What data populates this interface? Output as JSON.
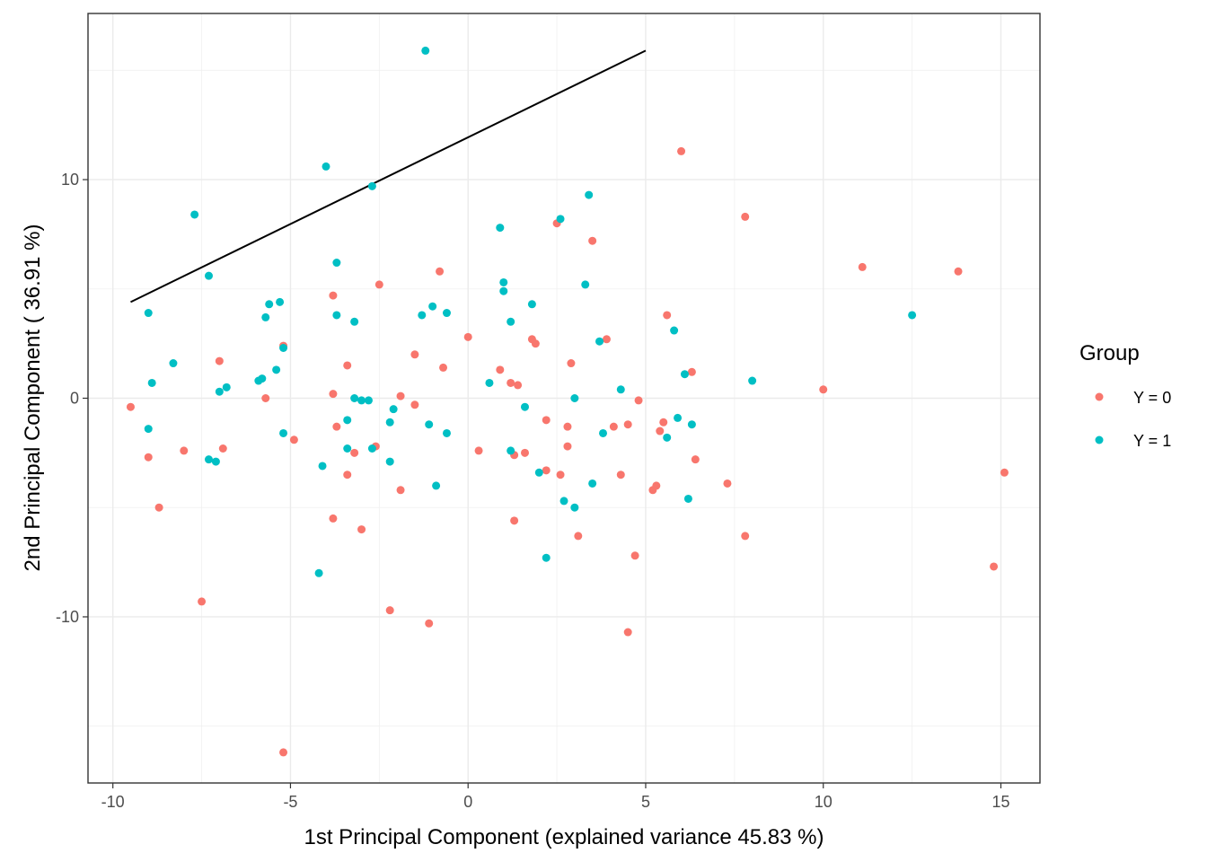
{
  "chart_data": {
    "type": "scatter",
    "xlabel": "1st Principal Component (explained variance 45.83 %)",
    "ylabel": "2nd Principal Component ( 36.91 %)",
    "xlim": [
      -10.7,
      16.1
    ],
    "ylim": [
      -17.6,
      17.6
    ],
    "x_ticks": [
      -10,
      -5,
      0,
      5,
      10,
      15
    ],
    "x_tick_labels": [
      "-10",
      "-5",
      "0",
      "5",
      "10",
      "15"
    ],
    "y_ticks": [
      -10,
      0,
      10
    ],
    "y_tick_labels": [
      "-10",
      "0",
      "10"
    ],
    "grid": true,
    "legend": {
      "title": "Group",
      "position": "right"
    },
    "series": [
      {
        "name": "Y = 0",
        "color": "#F8766D",
        "points": [
          [
            -9.5,
            -0.4
          ],
          [
            -9.0,
            -2.7
          ],
          [
            -8.7,
            -5.0
          ],
          [
            -8.0,
            -2.4
          ],
          [
            -7.5,
            -9.3
          ],
          [
            -7.0,
            1.7
          ],
          [
            -6.9,
            -2.3
          ],
          [
            -5.7,
            0.0
          ],
          [
            -5.2,
            2.4
          ],
          [
            -5.2,
            -16.2
          ],
          [
            -4.9,
            -1.9
          ],
          [
            -3.8,
            4.7
          ],
          [
            -3.8,
            0.2
          ],
          [
            -3.8,
            -5.5
          ],
          [
            -3.7,
            -1.3
          ],
          [
            -3.4,
            1.5
          ],
          [
            -3.4,
            -3.5
          ],
          [
            -3.2,
            -2.5
          ],
          [
            -3.0,
            -6.0
          ],
          [
            -2.6,
            -2.2
          ],
          [
            -2.5,
            5.2
          ],
          [
            -2.2,
            -9.7
          ],
          [
            -1.9,
            -4.2
          ],
          [
            -1.9,
            0.1
          ],
          [
            -1.5,
            2.0
          ],
          [
            -1.5,
            -0.3
          ],
          [
            -1.1,
            -10.3
          ],
          [
            -0.8,
            5.8
          ],
          [
            -0.7,
            1.4
          ],
          [
            0.0,
            2.8
          ],
          [
            0.3,
            -2.4
          ],
          [
            0.9,
            1.3
          ],
          [
            1.2,
            0.7
          ],
          [
            1.3,
            -2.6
          ],
          [
            1.3,
            -5.6
          ],
          [
            1.4,
            0.6
          ],
          [
            1.6,
            -2.5
          ],
          [
            1.8,
            2.7
          ],
          [
            1.9,
            2.5
          ],
          [
            2.2,
            -1.0
          ],
          [
            2.2,
            -3.3
          ],
          [
            2.5,
            8.0
          ],
          [
            2.6,
            -3.5
          ],
          [
            2.8,
            -1.3
          ],
          [
            2.8,
            -2.2
          ],
          [
            2.9,
            1.6
          ],
          [
            3.1,
            -6.3
          ],
          [
            3.5,
            7.2
          ],
          [
            3.9,
            2.7
          ],
          [
            4.1,
            -1.3
          ],
          [
            4.3,
            -3.5
          ],
          [
            4.5,
            -1.2
          ],
          [
            4.5,
            -10.7
          ],
          [
            4.7,
            -7.2
          ],
          [
            4.8,
            -0.1
          ],
          [
            5.2,
            -4.2
          ],
          [
            5.3,
            -4.0
          ],
          [
            5.4,
            -1.5
          ],
          [
            5.5,
            -1.1
          ],
          [
            5.6,
            3.8
          ],
          [
            6.0,
            11.3
          ],
          [
            6.3,
            1.2
          ],
          [
            6.4,
            -2.8
          ],
          [
            7.3,
            -3.9
          ],
          [
            7.8,
            -6.3
          ],
          [
            7.8,
            8.3
          ],
          [
            10.0,
            0.4
          ],
          [
            11.1,
            6.0
          ],
          [
            13.8,
            5.8
          ],
          [
            14.8,
            -7.7
          ],
          [
            15.1,
            -3.4
          ]
        ]
      },
      {
        "name": "Y = 1",
        "color": "#00BFC4",
        "points": [
          [
            -9.0,
            3.9
          ],
          [
            -9.0,
            -1.4
          ],
          [
            -8.9,
            0.7
          ],
          [
            -8.3,
            1.6
          ],
          [
            -7.7,
            8.4
          ],
          [
            -7.3,
            5.6
          ],
          [
            -7.3,
            -2.8
          ],
          [
            -7.1,
            -2.9
          ],
          [
            -7.0,
            0.3
          ],
          [
            -6.8,
            0.5
          ],
          [
            -5.9,
            0.8
          ],
          [
            -5.8,
            0.9
          ],
          [
            -5.7,
            3.7
          ],
          [
            -5.6,
            4.3
          ],
          [
            -5.4,
            1.3
          ],
          [
            -5.3,
            4.4
          ],
          [
            -5.2,
            2.3
          ],
          [
            -5.2,
            -1.6
          ],
          [
            -4.2,
            -8.0
          ],
          [
            -4.1,
            -3.1
          ],
          [
            -4.0,
            10.6
          ],
          [
            -3.7,
            6.2
          ],
          [
            -3.7,
            3.8
          ],
          [
            -3.4,
            -2.3
          ],
          [
            -3.4,
            -1.0
          ],
          [
            -3.2,
            0.0
          ],
          [
            -3.2,
            3.5
          ],
          [
            -3.0,
            -0.1
          ],
          [
            -2.8,
            -0.1
          ],
          [
            -2.7,
            9.7
          ],
          [
            -2.7,
            -2.3
          ],
          [
            -2.2,
            -1.1
          ],
          [
            -2.2,
            -2.9
          ],
          [
            -2.1,
            -0.5
          ],
          [
            -1.3,
            3.8
          ],
          [
            -1.2,
            15.9
          ],
          [
            -1.1,
            -1.2
          ],
          [
            -1.0,
            4.2
          ],
          [
            -0.9,
            -4.0
          ],
          [
            -0.6,
            -1.6
          ],
          [
            -0.6,
            3.9
          ],
          [
            0.6,
            0.7
          ],
          [
            0.9,
            7.8
          ],
          [
            1.0,
            5.3
          ],
          [
            1.0,
            4.9
          ],
          [
            1.2,
            3.5
          ],
          [
            1.2,
            -2.4
          ],
          [
            1.6,
            -0.4
          ],
          [
            1.8,
            4.3
          ],
          [
            2.0,
            -3.4
          ],
          [
            2.2,
            -7.3
          ],
          [
            2.6,
            8.2
          ],
          [
            2.7,
            -4.7
          ],
          [
            3.0,
            -5.0
          ],
          [
            3.0,
            0.0
          ],
          [
            3.3,
            5.2
          ],
          [
            3.4,
            9.3
          ],
          [
            3.5,
            -3.9
          ],
          [
            3.7,
            2.6
          ],
          [
            3.8,
            -1.6
          ],
          [
            4.3,
            0.4
          ],
          [
            5.6,
            -1.8
          ],
          [
            5.8,
            3.1
          ],
          [
            5.9,
            -0.9
          ],
          [
            6.1,
            1.1
          ],
          [
            6.2,
            -4.6
          ],
          [
            6.3,
            -1.2
          ],
          [
            8.0,
            0.8
          ],
          [
            12.5,
            3.8
          ]
        ]
      }
    ],
    "line": {
      "color": "#000000",
      "points": [
        [
          -9.5,
          4.4
        ],
        [
          5.0,
          15.9
        ]
      ]
    }
  }
}
